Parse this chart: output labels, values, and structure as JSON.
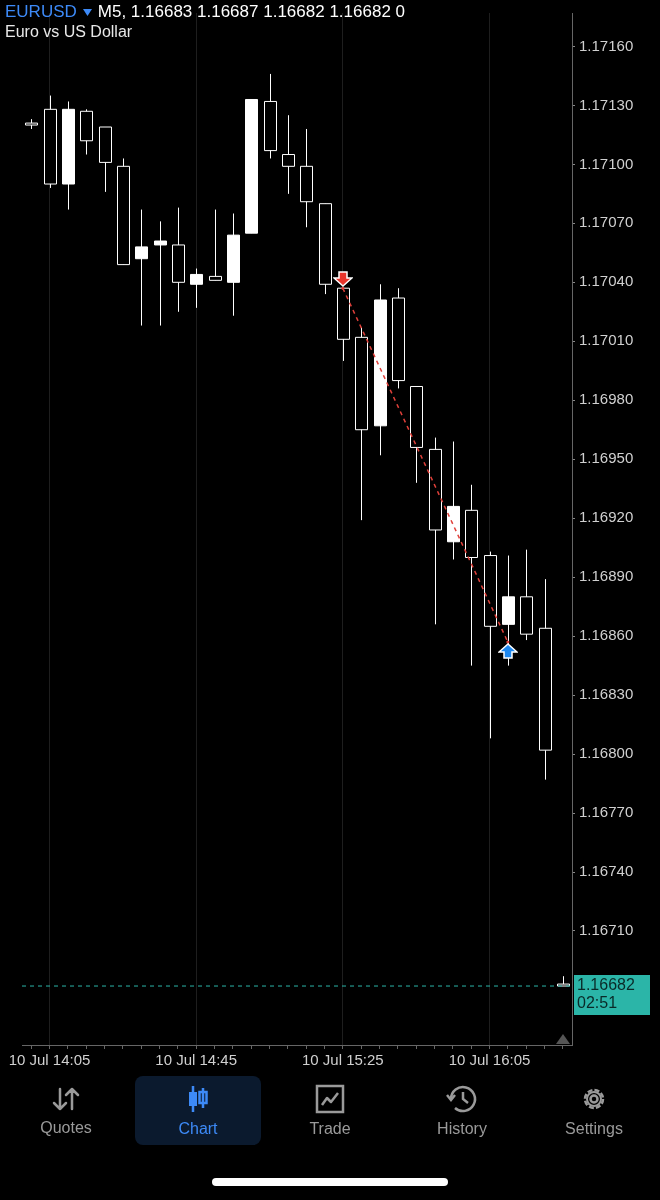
{
  "chart_data": {
    "type": "candlestick",
    "title": "EURUSD",
    "subtitle": "Euro vs US Dollar",
    "annotations": [
      "M5, 1.16683 1.16687 1.16682 1.16682 0",
      "Quotes",
      "Chart",
      "Trade",
      "History",
      "Settings"
    ],
    "categories": [
      null,
      "10 Jul 14:05",
      null,
      null,
      null,
      null,
      null,
      null,
      null,
      "10 Jul 14:45",
      null,
      null,
      null,
      null,
      null,
      null,
      null,
      "10 Jul 15:25",
      null,
      null,
      null,
      null,
      null,
      null,
      null,
      "10 Jul 16:05",
      null,
      null,
      null,
      null
    ],
    "color": "#ffffff",
    "colors": [
      "#000000",
      "#000000",
      "#ffffff",
      "#000000",
      "#000000",
      "#000000",
      "#ffffff",
      "#ffffff",
      "#000000",
      "#ffffff",
      "#000000",
      "#ffffff",
      "#ffffff",
      "#000000",
      "#000000",
      "#000000",
      "#000000",
      "#000000",
      "#000000",
      "#ffffff",
      "#000000",
      "#000000",
      "#000000",
      "#ffffff",
      "#000000",
      "#000000",
      "#ffffff",
      "#000000",
      "#000000",
      "#000000"
    ],
    "ohlc": [
      [
        1.17121,
        1.17123,
        1.17118,
        1.1712
      ],
      [
        1.17128,
        1.17135,
        1.17088,
        1.1709
      ],
      [
        1.1709,
        1.17132,
        1.17077,
        1.17128
      ],
      [
        1.17127,
        1.17128,
        1.17105,
        1.17112
      ],
      [
        1.17119,
        1.17119,
        1.17086,
        1.17101
      ],
      [
        1.17099,
        1.17103,
        1.17049,
        1.17049
      ],
      [
        1.17052,
        1.17077,
        1.17018,
        1.17058
      ],
      [
        1.17059,
        1.17071,
        1.17018,
        1.17061
      ],
      [
        1.17059,
        1.17078,
        1.17025,
        1.1704
      ],
      [
        1.17039,
        1.17047,
        1.17027,
        1.17044
      ],
      [
        1.17043,
        1.17077,
        1.17041,
        1.17041
      ],
      [
        1.1704,
        1.17075,
        1.17023,
        1.17064
      ],
      [
        1.17065,
        1.17133,
        1.17065,
        1.17133
      ],
      [
        1.17132,
        1.17146,
        1.17103,
        1.17107
      ],
      [
        1.17105,
        1.17125,
        1.17085,
        1.17099
      ],
      [
        1.17099,
        1.17118,
        1.17068,
        1.17081
      ],
      [
        1.1708,
        1.1708,
        1.17034,
        1.17039
      ],
      [
        1.17037,
        1.17037,
        1.17,
        1.17011
      ],
      [
        1.17012,
        1.17017,
        1.16919,
        1.16965
      ],
      [
        1.16967,
        1.17039,
        1.16952,
        1.17031
      ],
      [
        1.17032,
        1.17037,
        1.16986,
        1.1699
      ],
      [
        1.16987,
        1.16987,
        1.16938,
        1.16956
      ],
      [
        1.16955,
        1.16961,
        1.16866,
        1.16914
      ],
      [
        1.16908,
        1.16959,
        1.16899,
        1.16926
      ],
      [
        1.16924,
        1.16937,
        1.16845,
        1.169
      ],
      [
        1.16901,
        1.16903,
        1.16808,
        1.16865
      ],
      [
        1.16866,
        1.16901,
        1.16845,
        1.1688
      ],
      [
        1.1688,
        1.16904,
        1.16858,
        1.16861
      ],
      [
        1.16864,
        1.16889,
        1.16787,
        1.16802
      ],
      [
        1.16683,
        1.16687,
        1.16682,
        1.16682
      ]
    ],
    "series": [
      {
        "type": "line",
        "color": "#e0403a",
        "line_style": "dashed",
        "values": [
          null,
          null,
          null,
          null,
          null,
          null,
          null,
          null,
          null,
          null,
          null,
          null,
          null,
          null,
          null,
          null,
          null,
          1.17037,
          null,
          null,
          null,
          null,
          null,
          null,
          null,
          null,
          1.16857,
          null,
          null,
          null
        ]
      }
    ],
    "ylim": [
      1.16652,
      1.17177
    ],
    "yticks": [
      {
        "value": 1.1716,
        "label": "1.17160"
      },
      {
        "value": 1.1713,
        "label": "1.17130"
      },
      {
        "value": 1.171,
        "label": "1.17100"
      },
      {
        "value": 1.1707,
        "label": "1.17070"
      },
      {
        "value": 1.1704,
        "label": "1.17040"
      },
      {
        "value": 1.1701,
        "label": "1.17010"
      },
      {
        "value": 1.1698,
        "label": "1.16980"
      },
      {
        "value": 1.1695,
        "label": "1.16950"
      },
      {
        "value": 1.1692,
        "label": "1.16920"
      },
      {
        "value": 1.1689,
        "label": "1.16890"
      },
      {
        "value": 1.1686,
        "label": "1.16860"
      },
      {
        "value": 1.1683,
        "label": "1.16830"
      },
      {
        "value": 1.168,
        "label": "1.16800"
      },
      {
        "value": 1.1677,
        "label": "1.16770"
      },
      {
        "value": 1.1674,
        "label": "1.16740"
      },
      {
        "value": 1.1671,
        "label": "1.16710"
      }
    ],
    "ref_lines": [
      {
        "axis": "y",
        "value": 1.16682,
        "label": "1.16682\n02:51",
        "color": "#2bb5a8",
        "line_style": "dashed"
      }
    ],
    "grid": "x"
  }
}
